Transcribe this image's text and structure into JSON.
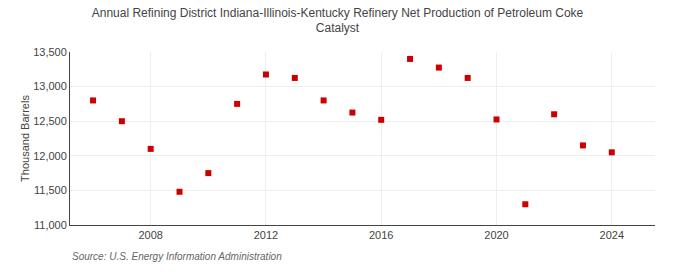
{
  "chart_data": {
    "type": "scatter",
    "title": "Annual Refining District Indiana-Illinois-Kentucky Refinery Net Production of Petroleum Coke\nCatalyst",
    "ylabel": "Thousand Barrels",
    "source": "Source: U.S. Energy Information Administration",
    "x": [
      2006,
      2007,
      2008,
      2009,
      2010,
      2011,
      2012,
      2013,
      2014,
      2015,
      2016,
      2017,
      2018,
      2019,
      2020,
      2021,
      2022,
      2023,
      2024
    ],
    "values": [
      12800,
      12500,
      12100,
      11480,
      11750,
      12750,
      13175,
      13125,
      12800,
      12625,
      12520,
      13400,
      13275,
      13125,
      12525,
      11300,
      12600,
      12150,
      12050
    ],
    "color": "#cc0000",
    "marker": "square",
    "xlim": [
      2005.2,
      2025.5
    ],
    "xticks": [
      2008,
      2012,
      2016,
      2020,
      2024
    ],
    "ylim": [
      11000,
      13500
    ],
    "yticks": [
      {
        "value": 11000,
        "label": "11,000"
      },
      {
        "value": 11500,
        "label": "11,500"
      },
      {
        "value": 12000,
        "label": "12,000"
      },
      {
        "value": 12500,
        "label": "12,500"
      },
      {
        "value": 13000,
        "label": "13,000"
      },
      {
        "value": 13500,
        "label": "13,500"
      }
    ],
    "grid": true
  }
}
